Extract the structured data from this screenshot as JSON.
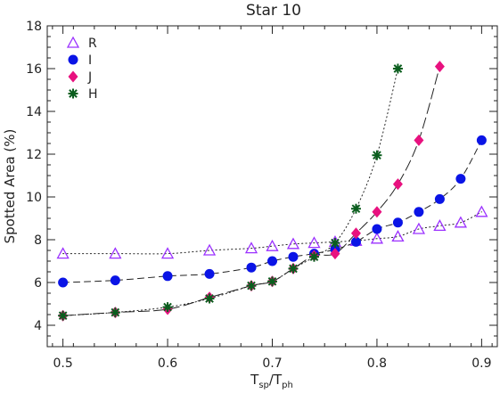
{
  "chart_data": {
    "type": "scatter",
    "title": "Star 10",
    "xlabel": {
      "main": "T",
      "sub1": "sp",
      "slash": "/T",
      "sub2": "ph"
    },
    "ylabel": "Spotted Area (%)",
    "xlim": [
      0.485,
      0.915
    ],
    "ylim": [
      3,
      18
    ],
    "xticks": [
      0.5,
      0.6,
      0.7,
      0.8,
      0.9
    ],
    "yticks": [
      4,
      6,
      8,
      10,
      12,
      14,
      16,
      18
    ],
    "xtick_labels": [
      "0.5",
      "0.6",
      "0.7",
      "0.8",
      "0.9"
    ],
    "ytick_labels": [
      "4",
      "6",
      "8",
      "10",
      "12",
      "14",
      "16",
      "18"
    ],
    "legend_position": "top-left",
    "grid": false,
    "series": [
      {
        "name": "R",
        "marker": "triangle-open",
        "color": "#9b30ff",
        "line_style": "dotted",
        "x": [
          0.5,
          0.55,
          0.6,
          0.64,
          0.68,
          0.7,
          0.72,
          0.74,
          0.76,
          0.78,
          0.8,
          0.82,
          0.84,
          0.86,
          0.88,
          0.9
        ],
        "y": [
          7.35,
          7.35,
          7.35,
          7.5,
          7.6,
          7.7,
          7.8,
          7.85,
          7.9,
          7.95,
          8.05,
          8.15,
          8.5,
          8.65,
          8.8,
          9.3
        ]
      },
      {
        "name": "I",
        "marker": "circle-filled",
        "color": "#0a14e6",
        "line_style": "dashed",
        "x": [
          0.5,
          0.55,
          0.6,
          0.64,
          0.68,
          0.7,
          0.72,
          0.74,
          0.76,
          0.78,
          0.8,
          0.82,
          0.84,
          0.86,
          0.88,
          0.9
        ],
        "y": [
          6.0,
          6.1,
          6.3,
          6.4,
          6.7,
          7.0,
          7.2,
          7.35,
          7.55,
          7.9,
          8.5,
          8.8,
          9.3,
          9.9,
          10.85,
          12.65
        ]
      },
      {
        "name": "J",
        "marker": "diamond-filled",
        "color": "#e8117f",
        "line_style": "longdash",
        "x": [
          0.5,
          0.55,
          0.6,
          0.64,
          0.68,
          0.7,
          0.72,
          0.74,
          0.76,
          0.78,
          0.8,
          0.82,
          0.84,
          0.86
        ],
        "y": [
          4.45,
          4.6,
          4.75,
          5.3,
          5.85,
          6.05,
          6.65,
          7.25,
          7.35,
          8.3,
          9.3,
          10.6,
          12.65,
          16.1
        ]
      },
      {
        "name": "H",
        "marker": "asterisk",
        "color": "#0b5e1e",
        "line_style": "dotted",
        "x": [
          0.5,
          0.55,
          0.6,
          0.64,
          0.68,
          0.7,
          0.72,
          0.74,
          0.76,
          0.78,
          0.8,
          0.82
        ],
        "y": [
          4.45,
          4.6,
          4.85,
          5.25,
          5.85,
          6.05,
          6.65,
          7.2,
          7.85,
          9.45,
          11.95,
          16.0
        ]
      }
    ]
  }
}
